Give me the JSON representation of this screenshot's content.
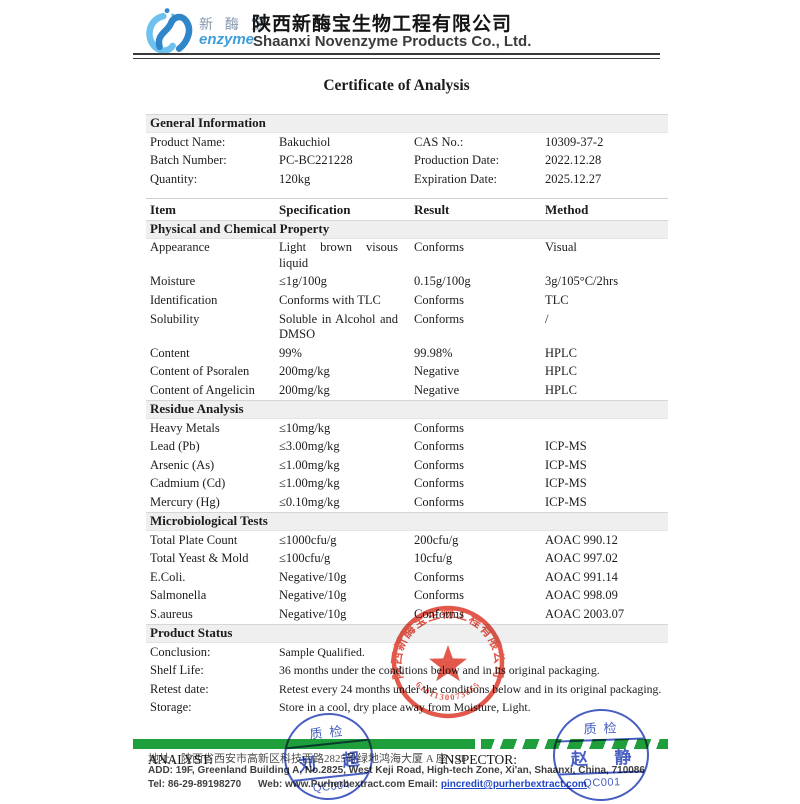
{
  "header": {
    "logo_cn": "新 酶 宝",
    "logo_en": "enzyme",
    "company_cn": "陕西新酶宝生物工程有限公司",
    "company_en": "Shaanxi Novenzyme Products Co., Ltd."
  },
  "title": "Certificate of Analysis",
  "general_info": {
    "section_title": "General Information",
    "rows": [
      {
        "l1": "Product Name:",
        "v1": "Bakuchiol",
        "l2": "CAS No.:",
        "v2": "10309-37-2"
      },
      {
        "l1": "Batch Number:",
        "v1": "PC-BC221228",
        "l2": "Production Date:",
        "v2": "2022.12.28"
      },
      {
        "l1": "Quantity:",
        "v1": "120kg",
        "l2": "Expiration Date:",
        "v2": "2025.12.27"
      }
    ]
  },
  "table": {
    "headers": [
      "Item",
      "Specification",
      "Result",
      "Method"
    ],
    "sections": [
      {
        "title": "Physical and Chemical Property",
        "rows": [
          [
            "Appearance",
            "Light brown visous liquid",
            "Conforms",
            "Visual"
          ],
          [
            "Moisture",
            "≤1g/100g",
            "0.15g/100g",
            "3g/105°C/2hrs"
          ],
          [
            "Identification",
            "Conforms with TLC",
            "Conforms",
            "TLC"
          ],
          [
            "Solubility",
            "Soluble in Alcohol and DMSO",
            "Conforms",
            "/"
          ],
          [
            "Content",
            "99%",
            "99.98%",
            "HPLC"
          ],
          [
            "Content of Psoralen",
            "200mg/kg",
            "Negative",
            "HPLC"
          ],
          [
            "Content of Angelicin",
            "200mg/kg",
            "Negative",
            "HPLC"
          ]
        ]
      },
      {
        "title": "Residue Analysis",
        "rows": [
          [
            "Heavy Metals",
            "≤10mg/kg",
            "Conforms",
            ""
          ],
          [
            "Lead (Pb)",
            "≤3.00mg/kg",
            "Conforms",
            "ICP-MS"
          ],
          [
            "Arsenic (As)",
            "≤1.00mg/kg",
            "Conforms",
            "ICP-MS"
          ],
          [
            "Cadmium (Cd)",
            "≤1.00mg/kg",
            "Conforms",
            "ICP-MS"
          ],
          [
            "Mercury (Hg)",
            "≤0.10mg/kg",
            "Conforms",
            "ICP-MS"
          ]
        ]
      },
      {
        "title": "Microbiological Tests",
        "rows": [
          [
            "Total Plate Count",
            "≤1000cfu/g",
            "200cfu/g",
            "AOAC 990.12"
          ],
          [
            "Total Yeast & Mold",
            "≤100cfu/g",
            "10cfu/g",
            "AOAC 997.02"
          ],
          [
            "E.Coli.",
            "Negative/10g",
            "Conforms",
            "AOAC 991.14"
          ],
          [
            "Salmonella",
            "Negative/10g",
            "Conforms",
            "AOAC 998.09"
          ],
          [
            "S.aureus",
            "Negative/10g",
            "Conforms",
            "AOAC 2003.07"
          ]
        ]
      }
    ]
  },
  "product_status": {
    "section_title": "Product Status",
    "rows": [
      {
        "label": "Conclusion:",
        "value": "Sample Qualified."
      },
      {
        "label": "Shelf Life:",
        "value": "36 months under the conditions below and in its original packaging."
      },
      {
        "label": "Retest date:",
        "value": "Retest every 24 months under the conditions below and in its original packaging."
      },
      {
        "label": "Storage:",
        "value": "Store in a cool, dry place away from Moisture, Light."
      }
    ]
  },
  "stamps": {
    "company_seal": {
      "ring_text": "陕西新酶宝生物工程有限公司",
      "serial": "6101130073865",
      "color": "#dd3b2c"
    },
    "qc_left": {
      "top": "质检",
      "name": "刘 超",
      "code": "QC004",
      "color": "#3d55bf"
    },
    "qc_right": {
      "top": "质检",
      "name": "赵 静",
      "code": "QC001",
      "color": "#3d55bf"
    }
  },
  "footer": {
    "analyst_label": "ANALYST:",
    "inspector_label": "INSPECTOR:",
    "address_cn": "地址：陕西省西安市高新区科技西路2825号绿地鸿海大厦 A 座 19F",
    "address_en": "ADD: 19F, Greenland Building A, No.2825, West Keji Road, High-tech Zone, Xi'an, Shaanxi, China, 710086",
    "tel": "Tel: 86-29-89198270",
    "web": "Web: www.Purherbextract.com",
    "email_label": "Email:",
    "email": "pincredit@purherbextract.com",
    "banner_color": "#1f9e3c"
  }
}
